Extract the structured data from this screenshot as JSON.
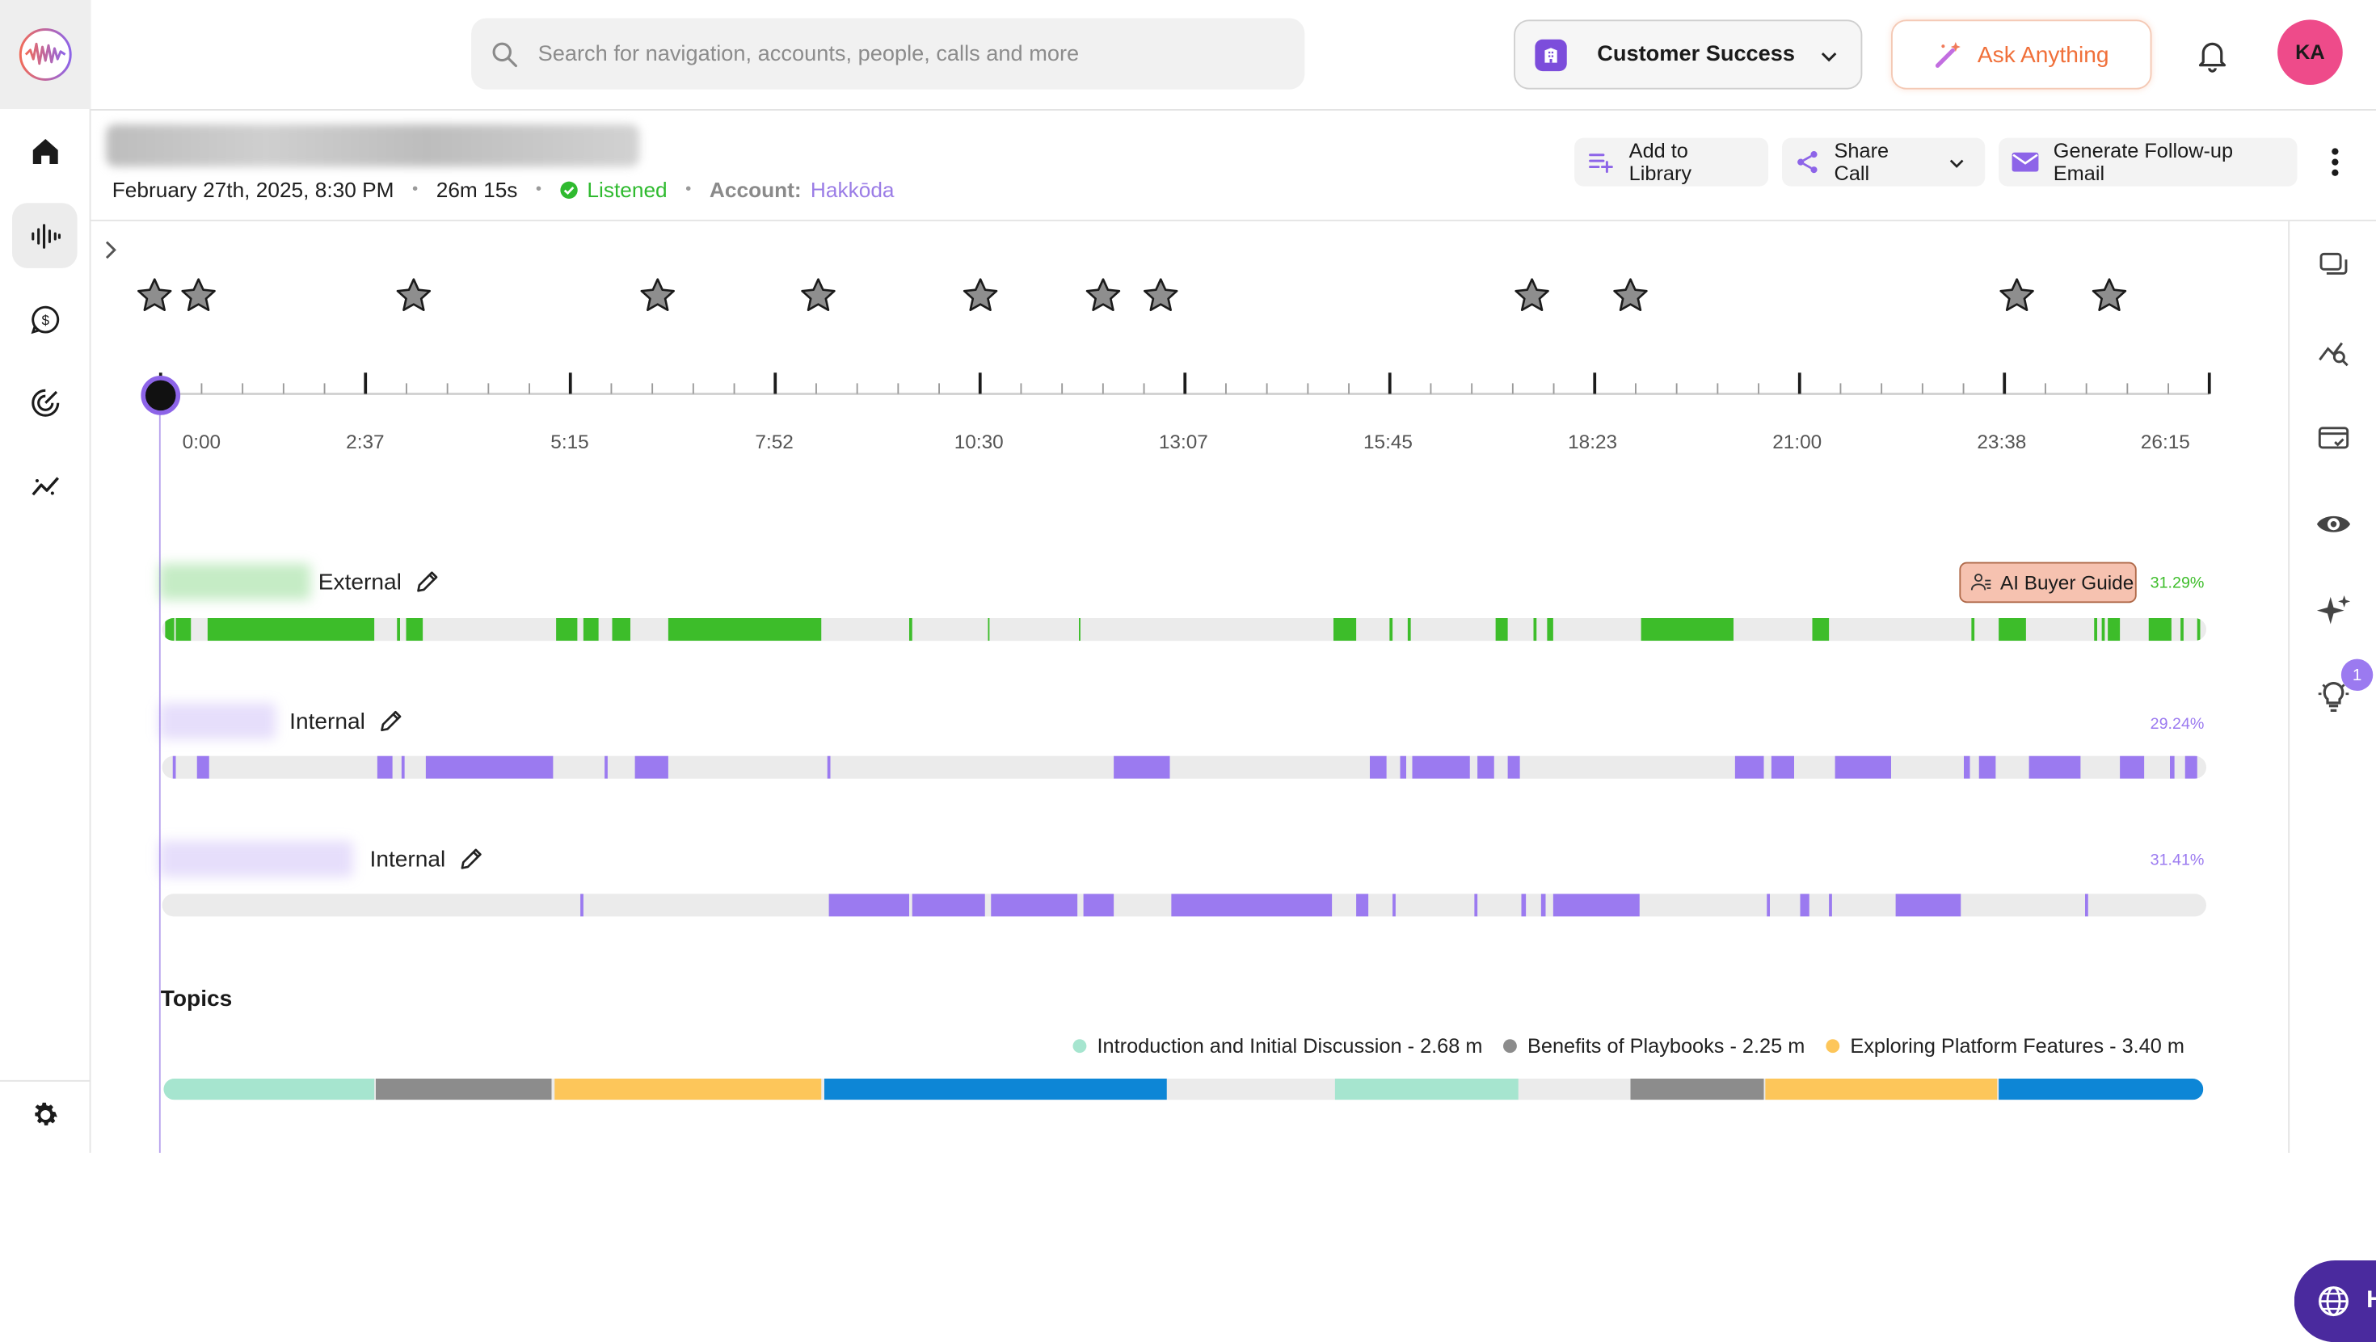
{
  "search": {
    "placeholder": "Search for navigation, accounts, people, calls and more"
  },
  "team_selector": {
    "label": "Customer Success"
  },
  "ask_button": {
    "label": "Ask Anything"
  },
  "user": {
    "initials": "KA"
  },
  "call": {
    "date": "February 27th, 2025, 8:30 PM",
    "duration": "26m 15s",
    "status": "Listened",
    "account_label": "Account:",
    "account_name": "Hakkōda"
  },
  "actions": {
    "add_library": "Add to Library",
    "share_call": "Share Call",
    "follow_up": "Generate Follow-up Email"
  },
  "timeline": {
    "labels": [
      "0:00",
      "2:37",
      "5:15",
      "7:52",
      "10:30",
      "13:07",
      "15:45",
      "18:23",
      "21:00",
      "23:38",
      "26:15"
    ]
  },
  "speakers": [
    {
      "name": "External",
      "pct": "31.29%",
      "color": "#3dbd2a"
    },
    {
      "name": "Internal",
      "pct": "29.24%",
      "color": "#9b7af0"
    },
    {
      "name": "Internal",
      "pct": "31.41%",
      "color": "#9b7af0"
    }
  ],
  "ai_buyer_guide": {
    "label": "AI Buyer Guide"
  },
  "topics": {
    "heading": "Topics",
    "legend": [
      {
        "label": "Introduction and Initial Discussion - 2.68 m",
        "color": "#a6e5cf"
      },
      {
        "label": "Benefits of Playbooks - 2.25 m",
        "color": "#8c8c8c"
      },
      {
        "label": "Exploring Platform Features - 3.40 m",
        "color": "#fdc65a"
      }
    ]
  },
  "help": {
    "label": "Help"
  },
  "notifications": {
    "insights_badge": "1"
  },
  "colors": {
    "accent": "#8d64e8",
    "green": "#3dbd2a",
    "purple": "#9b7af0",
    "blue": "#0d86d6"
  }
}
